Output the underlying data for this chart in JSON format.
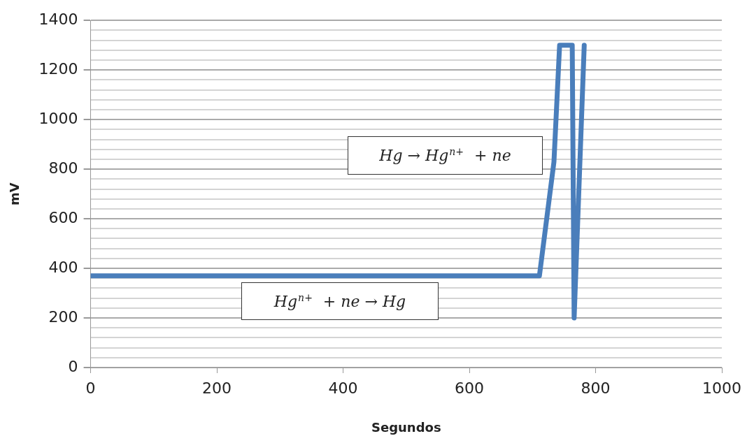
{
  "chart_data": {
    "type": "line",
    "xlabel": "Segundos",
    "ylabel": "mV",
    "x": [
      0,
      711,
      734,
      743,
      763,
      766,
      782
    ],
    "series": [
      {
        "color": "#4a7ebb",
        "values": [
          370,
          370,
          829,
          1300,
          1300,
          200,
          1300
        ]
      }
    ],
    "xlim": [
      0,
      1000
    ],
    "xticks": [
      0,
      200,
      400,
      600,
      800,
      1000
    ],
    "ylim": [
      0,
      1400
    ],
    "yticks": [
      0,
      {
        "value": 40,
        "label": null
      },
      {
        "value": 80,
        "label": null
      },
      {
        "value": 120,
        "label": null
      },
      {
        "value": 160,
        "label": null
      },
      200,
      {
        "value": 240,
        "label": null
      },
      {
        "value": 280,
        "label": null
      },
      {
        "value": 320,
        "label": null
      },
      {
        "value": 360,
        "label": null
      },
      400,
      {
        "value": 440,
        "label": null
      },
      {
        "value": 480,
        "label": null
      },
      {
        "value": 520,
        "label": null
      },
      {
        "value": 560,
        "label": null
      },
      600,
      {
        "value": 640,
        "label": null
      },
      {
        "value": 680,
        "label": null
      },
      {
        "value": 720,
        "label": null
      },
      {
        "value": 760,
        "label": null
      },
      800,
      {
        "value": 840,
        "label": null
      },
      {
        "value": 880,
        "label": null
      },
      {
        "value": 920,
        "label": null
      },
      {
        "value": 960,
        "label": null
      },
      1000,
      {
        "value": 1040,
        "label": null
      },
      {
        "value": 1080,
        "label": null
      },
      {
        "value": 1120,
        "label": null
      },
      {
        "value": 1160,
        "label": null
      },
      1200,
      {
        "value": 1240,
        "label": null
      },
      {
        "value": 1280,
        "label": null
      },
      {
        "value": 1320,
        "label": null
      },
      {
        "value": 1360,
        "label": null
      },
      1400
    ],
    "grid": "y",
    "legend": false,
    "marker": "none",
    "line_style": "solid",
    "annotations": [
      "Hg → Hg$^{n+}$ + ne",
      "Hg$^{n+}$ + ne → Hg"
    ]
  }
}
